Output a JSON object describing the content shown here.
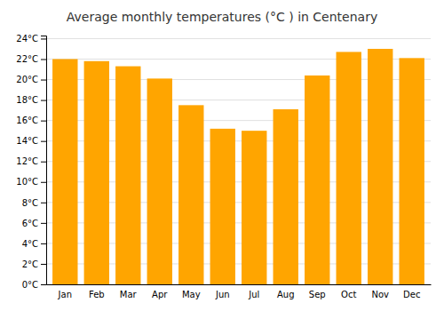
{
  "chart_data": {
    "type": "bar",
    "title": "Average monthly temperatures (°C ) in Centenary",
    "categories": [
      "Jan",
      "Feb",
      "Mar",
      "Apr",
      "May",
      "Jun",
      "Jul",
      "Aug",
      "Sep",
      "Oct",
      "Nov",
      "Dec"
    ],
    "values": [
      22.0,
      21.8,
      21.3,
      20.1,
      17.5,
      15.2,
      15.0,
      17.1,
      20.4,
      22.7,
      23.0,
      22.1
    ],
    "color": "#FFA500",
    "ylim": [
      0,
      24.3
    ],
    "yticks": [
      {
        "value": 0,
        "label": "0°C"
      },
      {
        "value": 2,
        "label": "2°C"
      },
      {
        "value": 4,
        "label": "4°C"
      },
      {
        "value": 6,
        "label": "6°C"
      },
      {
        "value": 8,
        "label": "8°C"
      },
      {
        "value": 10,
        "label": "10°C"
      },
      {
        "value": 12,
        "label": "12°C"
      },
      {
        "value": 14,
        "label": "14°C"
      },
      {
        "value": 16,
        "label": "16°C"
      },
      {
        "value": 18,
        "label": "18°C"
      },
      {
        "value": 20,
        "label": "20°C"
      },
      {
        "value": 22,
        "label": "22°C"
      },
      {
        "value": 24,
        "label": "24°C"
      }
    ],
    "grid": true
  }
}
